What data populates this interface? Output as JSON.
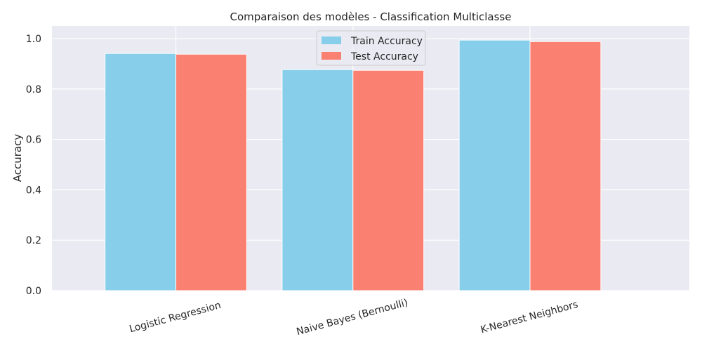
{
  "chart_data": {
    "type": "bar",
    "title": "Comparaison des modèles - Classification Multiclasse",
    "xlabel": "",
    "ylabel": "Accuracy",
    "categories": [
      "Logistic Regression",
      "Naive Bayes (Bernoulli)",
      "K-Nearest Neighbors"
    ],
    "series": [
      {
        "name": "Train Accuracy",
        "values": [
          0.941,
          0.877,
          0.994
        ],
        "color": "#87CEEB"
      },
      {
        "name": "Test Accuracy",
        "values": [
          0.938,
          0.874,
          0.988
        ],
        "color": "#FA8072"
      }
    ],
    "ylim": [
      0,
      1.05
    ],
    "yticks": [
      "0.0",
      "0.2",
      "0.4",
      "0.6",
      "0.8",
      "1.0"
    ],
    "grid": true,
    "legend_position": "top-center",
    "plot_background": "#EAEAF2",
    "grid_color": "#FFFFFF"
  }
}
